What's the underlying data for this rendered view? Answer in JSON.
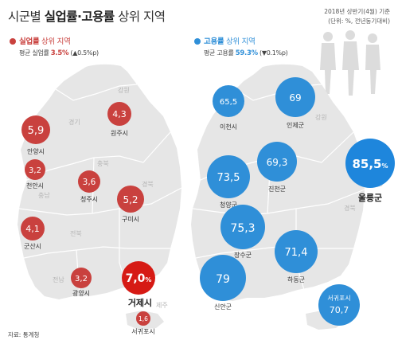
{
  "title": {
    "prefix": "시군별 ",
    "bold": "실업률·고용률",
    "suffix": " 상위 지역"
  },
  "meta": {
    "line1": "2018년 상반기(4월) 기준",
    "line2": "(단위: %, 전년동기대비)"
  },
  "left": {
    "heading_bold": "실업률",
    "heading_rest": " 상위 지역",
    "avg_label": "평균 실업률 ",
    "avg_value": "3.5%",
    "avg_change": " (▲0.5%p)",
    "color": "#c9413e",
    "regions": [
      "강원",
      "경기",
      "충북",
      "충남",
      "경북",
      "전북",
      "전남",
      "제주"
    ],
    "items": [
      {
        "value": "5,9",
        "label": "안양시"
      },
      {
        "value": "4,3",
        "label": "원주시"
      },
      {
        "value": "3,2",
        "label": "천안시"
      },
      {
        "value": "3,6",
        "label": "청주시"
      },
      {
        "value": "5,2",
        "label": "구미시"
      },
      {
        "value": "4,1",
        "label": "군산시"
      },
      {
        "value": "3,2",
        "label": "광양시"
      },
      {
        "value": "7,0",
        "unit": "%",
        "label": "거제시"
      },
      {
        "value": "1,6",
        "label": "서귀포시"
      }
    ]
  },
  "right": {
    "heading_bold": "고용률",
    "heading_rest": " 상위 지역",
    "avg_label": "평균 고용률 ",
    "avg_value": "59.3%",
    "avg_change": " (▼0.1%p)",
    "color": "#2f8fd8",
    "regions": [
      "강원",
      "경북"
    ],
    "items": [
      {
        "value": "65,5",
        "label": "이천시"
      },
      {
        "value": "69",
        "label": "인제군"
      },
      {
        "value": "69,3",
        "label": "진천군"
      },
      {
        "value": "73,5",
        "label": "청양군"
      },
      {
        "value": "75,3",
        "label": "장수군"
      },
      {
        "value": "71,4",
        "label": "하동군"
      },
      {
        "value": "79",
        "label": "신안군"
      },
      {
        "value": "85,5",
        "unit": "%",
        "label": "울릉군"
      },
      {
        "value": "70,7",
        "label": "서귀포시"
      }
    ]
  },
  "source": "자료: 통계청"
}
